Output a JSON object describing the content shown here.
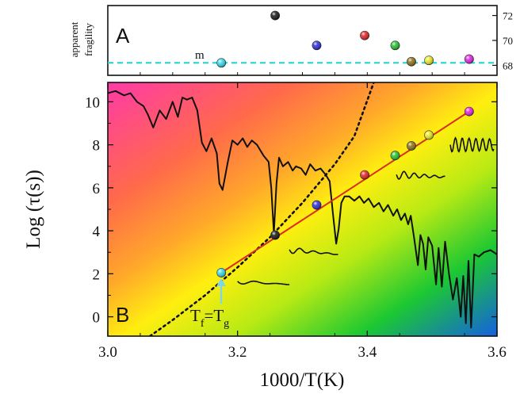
{
  "chart_data": [
    {
      "panel": "A",
      "type": "scatter",
      "panel_label": "A",
      "ylabel_lines": [
        "apparent",
        "fragility"
      ],
      "xlim": [
        3.0,
        3.6
      ],
      "ylim": [
        67.2,
        72.8
      ],
      "yticks": [
        68,
        70,
        72
      ],
      "ytick_labels": [
        "68",
        "70",
        "72"
      ],
      "reference_line": {
        "y": 68.2,
        "color": "#2fd6d6",
        "style": "dashed",
        "label": "m"
      },
      "points": [
        {
          "x": 3.175,
          "y": 68.2,
          "color": "#33d6e6"
        },
        {
          "x": 3.258,
          "y": 72.0,
          "color": "#111111"
        },
        {
          "x": 3.322,
          "y": 69.6,
          "color": "#2a2ad6"
        },
        {
          "x": 3.396,
          "y": 70.4,
          "color": "#e02020"
        },
        {
          "x": 3.443,
          "y": 69.6,
          "color": "#22c02a"
        },
        {
          "x": 3.468,
          "y": 68.3,
          "color": "#8a6d12"
        },
        {
          "x": 3.495,
          "y": 68.4,
          "color": "#e8e820"
        },
        {
          "x": 3.557,
          "y": 68.5,
          "color": "#e020e0"
        }
      ],
      "grid": false
    },
    {
      "panel": "B",
      "type": "scatter",
      "panel_label": "B",
      "xlabel": "1000/T(K)",
      "ylabel": "Log (τ(s))",
      "xlim": [
        3.0,
        3.6
      ],
      "ylim": [
        -0.9,
        10.9
      ],
      "xticks": [
        3.0,
        3.2,
        3.4,
        3.6
      ],
      "xtick_labels": [
        "3.0",
        "3.2",
        "3.4",
        "3.6"
      ],
      "yticks": [
        0,
        2,
        4,
        6,
        8,
        10
      ],
      "ytick_labels": [
        "0",
        "2",
        "4",
        "6",
        "8",
        "10"
      ],
      "background": "diagonal rainbow gradient (magenta top-left → orange → yellow → green → blue bottom-right)",
      "annotation": {
        "base": "T",
        "sub1": "f",
        "eq": "=",
        "sub2": "g",
        "arrow_color": "#7fd6e6"
      },
      "points": [
        {
          "x": 3.175,
          "y": 2.05,
          "color": "#33d6e6"
        },
        {
          "x": 3.258,
          "y": 3.8,
          "color": "#111111"
        },
        {
          "x": 3.322,
          "y": 5.2,
          "color": "#2a2ad6"
        },
        {
          "x": 3.396,
          "y": 6.6,
          "color": "#e02020"
        },
        {
          "x": 3.443,
          "y": 7.5,
          "color": "#22c02a"
        },
        {
          "x": 3.468,
          "y": 7.95,
          "color": "#8a6d12"
        },
        {
          "x": 3.495,
          "y": 8.45,
          "color": "#e8e820"
        },
        {
          "x": 3.557,
          "y": 9.55,
          "color": "#e020e0"
        }
      ],
      "fit_line": {
        "color": "#d83020",
        "x": [
          3.175,
          3.557
        ],
        "y": [
          2.05,
          9.55
        ]
      },
      "dotted_curve": {
        "color": "#111111",
        "style": "dotted",
        "x": [
          3.065,
          3.1,
          3.15,
          3.2,
          3.25,
          3.3,
          3.35,
          3.38,
          3.41
        ],
        "y": [
          -0.9,
          -0.15,
          1.0,
          2.3,
          3.7,
          5.3,
          7.1,
          8.4,
          10.9
        ]
      },
      "landscape_trace": {
        "color": "#111111",
        "x": [
          3.0,
          3.012,
          3.025,
          3.035,
          3.045,
          3.055,
          3.062,
          3.07,
          3.08,
          3.09,
          3.1,
          3.108,
          3.115,
          3.122,
          3.13,
          3.138,
          3.145,
          3.152,
          3.16,
          3.168,
          3.172,
          3.177,
          3.185,
          3.192,
          3.2,
          3.208,
          3.215,
          3.222,
          3.23,
          3.24,
          3.248,
          3.252,
          3.256,
          3.26,
          3.264,
          3.27,
          3.278,
          3.285,
          3.29,
          3.298,
          3.305,
          3.312,
          3.32,
          3.328,
          3.336,
          3.342,
          3.347,
          3.352,
          3.356,
          3.36,
          3.365,
          3.372,
          3.38,
          3.388,
          3.395,
          3.402,
          3.41,
          3.418,
          3.425,
          3.432,
          3.44,
          3.446,
          3.452,
          3.458,
          3.463,
          3.467,
          3.472,
          3.478,
          3.482,
          3.486,
          3.49,
          3.494,
          3.5,
          3.506,
          3.51,
          3.515,
          3.52,
          3.526,
          3.532,
          3.538,
          3.544,
          3.548,
          3.552,
          3.556,
          3.56,
          3.565,
          3.572,
          3.58,
          3.59,
          3.6
        ],
        "y": [
          10.4,
          10.5,
          10.3,
          10.4,
          10.0,
          9.8,
          9.4,
          8.8,
          9.6,
          9.2,
          10.0,
          9.3,
          10.2,
          10.1,
          10.2,
          9.6,
          8.1,
          7.7,
          8.3,
          7.6,
          6.2,
          5.9,
          7.2,
          8.2,
          8.0,
          8.3,
          7.9,
          8.2,
          8.0,
          7.5,
          7.2,
          6.0,
          3.9,
          6.2,
          7.4,
          7.0,
          7.2,
          6.8,
          7.0,
          6.9,
          6.6,
          7.1,
          6.8,
          6.9,
          6.6,
          6.3,
          4.8,
          3.4,
          4.1,
          5.3,
          5.6,
          5.6,
          5.4,
          5.6,
          5.3,
          5.5,
          5.1,
          5.3,
          4.9,
          5.2,
          4.7,
          5.0,
          4.5,
          4.8,
          4.3,
          4.7,
          3.7,
          2.4,
          3.8,
          3.4,
          2.2,
          3.7,
          3.3,
          1.5,
          3.2,
          1.4,
          3.5,
          2.0,
          0.8,
          1.8,
          0.0,
          1.9,
          -0.3,
          2.6,
          -0.5,
          2.9,
          2.8,
          3.0,
          3.1,
          2.9
        ]
      },
      "relaxation_insets": [
        {
          "x": [
            3.2,
            3.28
          ],
          "y": 1.5,
          "color": "#111111"
        },
        {
          "x": [
            3.28,
            3.355
          ],
          "y": 2.9,
          "color": "#111111"
        },
        {
          "x": [
            3.445,
            3.52
          ],
          "y": 6.5,
          "color": "#111111"
        },
        {
          "x": [
            3.528,
            3.595
          ],
          "y": 8.0,
          "color": "#111111"
        }
      ],
      "grid": false
    }
  ]
}
